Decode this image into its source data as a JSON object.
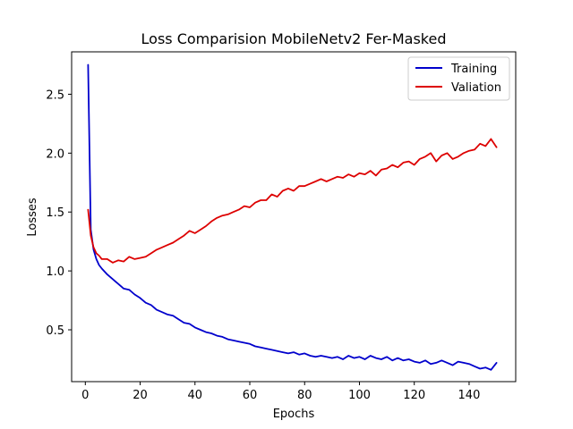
{
  "chart_data": {
    "type": "line",
    "title": "Loss Comparision MobileNetv2 Fer-Masked",
    "xlabel": "Epochs",
    "ylabel": "Losses",
    "xlim": [
      -5,
      157
    ],
    "ylim": [
      0.06,
      2.86
    ],
    "xticks": [
      0,
      20,
      40,
      60,
      80,
      100,
      120,
      140
    ],
    "yticks": [
      0.5,
      1.0,
      1.5,
      2.0,
      2.5
    ],
    "ytick_labels": [
      "0.5",
      "1.0",
      "1.5",
      "2.0",
      "2.5"
    ],
    "grid": false,
    "legend_position": "top-right",
    "series": [
      {
        "name": "Training",
        "color": "#0000cc",
        "x": [
          1,
          2,
          3,
          4,
          5,
          6,
          8,
          10,
          12,
          14,
          16,
          18,
          20,
          22,
          24,
          26,
          28,
          30,
          32,
          34,
          36,
          38,
          40,
          42,
          44,
          46,
          48,
          50,
          52,
          54,
          56,
          58,
          60,
          62,
          64,
          66,
          68,
          70,
          72,
          74,
          76,
          78,
          80,
          82,
          84,
          86,
          88,
          90,
          92,
          94,
          96,
          98,
          100,
          102,
          104,
          106,
          108,
          110,
          112,
          114,
          116,
          118,
          120,
          122,
          124,
          126,
          128,
          130,
          132,
          134,
          136,
          138,
          140,
          142,
          144,
          146,
          148,
          150
        ],
        "y": [
          2.75,
          1.35,
          1.18,
          1.1,
          1.05,
          1.02,
          0.97,
          0.93,
          0.89,
          0.85,
          0.84,
          0.8,
          0.77,
          0.73,
          0.71,
          0.67,
          0.65,
          0.63,
          0.62,
          0.59,
          0.56,
          0.55,
          0.52,
          0.5,
          0.48,
          0.47,
          0.45,
          0.44,
          0.42,
          0.41,
          0.4,
          0.39,
          0.38,
          0.36,
          0.35,
          0.34,
          0.33,
          0.32,
          0.31,
          0.3,
          0.31,
          0.29,
          0.3,
          0.28,
          0.27,
          0.28,
          0.27,
          0.26,
          0.27,
          0.25,
          0.28,
          0.26,
          0.27,
          0.25,
          0.28,
          0.26,
          0.25,
          0.27,
          0.24,
          0.26,
          0.24,
          0.25,
          0.23,
          0.22,
          0.24,
          0.21,
          0.22,
          0.24,
          0.22,
          0.2,
          0.23,
          0.22,
          0.21,
          0.19,
          0.17,
          0.18,
          0.16,
          0.22
        ]
      },
      {
        "name": "Valiation",
        "color": "#dd0000",
        "x": [
          1,
          2,
          3,
          4,
          5,
          6,
          8,
          10,
          12,
          14,
          16,
          18,
          20,
          22,
          24,
          26,
          28,
          30,
          32,
          34,
          36,
          38,
          40,
          42,
          44,
          46,
          48,
          50,
          52,
          54,
          56,
          58,
          60,
          62,
          64,
          66,
          68,
          70,
          72,
          74,
          76,
          78,
          80,
          82,
          84,
          86,
          88,
          90,
          92,
          94,
          96,
          98,
          100,
          102,
          104,
          106,
          108,
          110,
          112,
          114,
          116,
          118,
          120,
          122,
          124,
          126,
          128,
          130,
          132,
          134,
          136,
          138,
          140,
          142,
          144,
          146,
          148,
          150
        ],
        "y": [
          1.52,
          1.3,
          1.2,
          1.15,
          1.13,
          1.1,
          1.1,
          1.07,
          1.09,
          1.08,
          1.12,
          1.1,
          1.11,
          1.12,
          1.15,
          1.18,
          1.2,
          1.22,
          1.24,
          1.27,
          1.3,
          1.34,
          1.32,
          1.35,
          1.38,
          1.42,
          1.45,
          1.47,
          1.48,
          1.5,
          1.52,
          1.55,
          1.54,
          1.58,
          1.6,
          1.6,
          1.65,
          1.63,
          1.68,
          1.7,
          1.68,
          1.72,
          1.72,
          1.74,
          1.76,
          1.78,
          1.76,
          1.78,
          1.8,
          1.79,
          1.82,
          1.8,
          1.83,
          1.82,
          1.85,
          1.81,
          1.86,
          1.87,
          1.9,
          1.88,
          1.92,
          1.93,
          1.9,
          1.95,
          1.97,
          2.0,
          1.93,
          1.98,
          2.0,
          1.95,
          1.97,
          2.0,
          2.02,
          2.03,
          2.08,
          2.06,
          2.12,
          2.05
        ]
      }
    ]
  }
}
